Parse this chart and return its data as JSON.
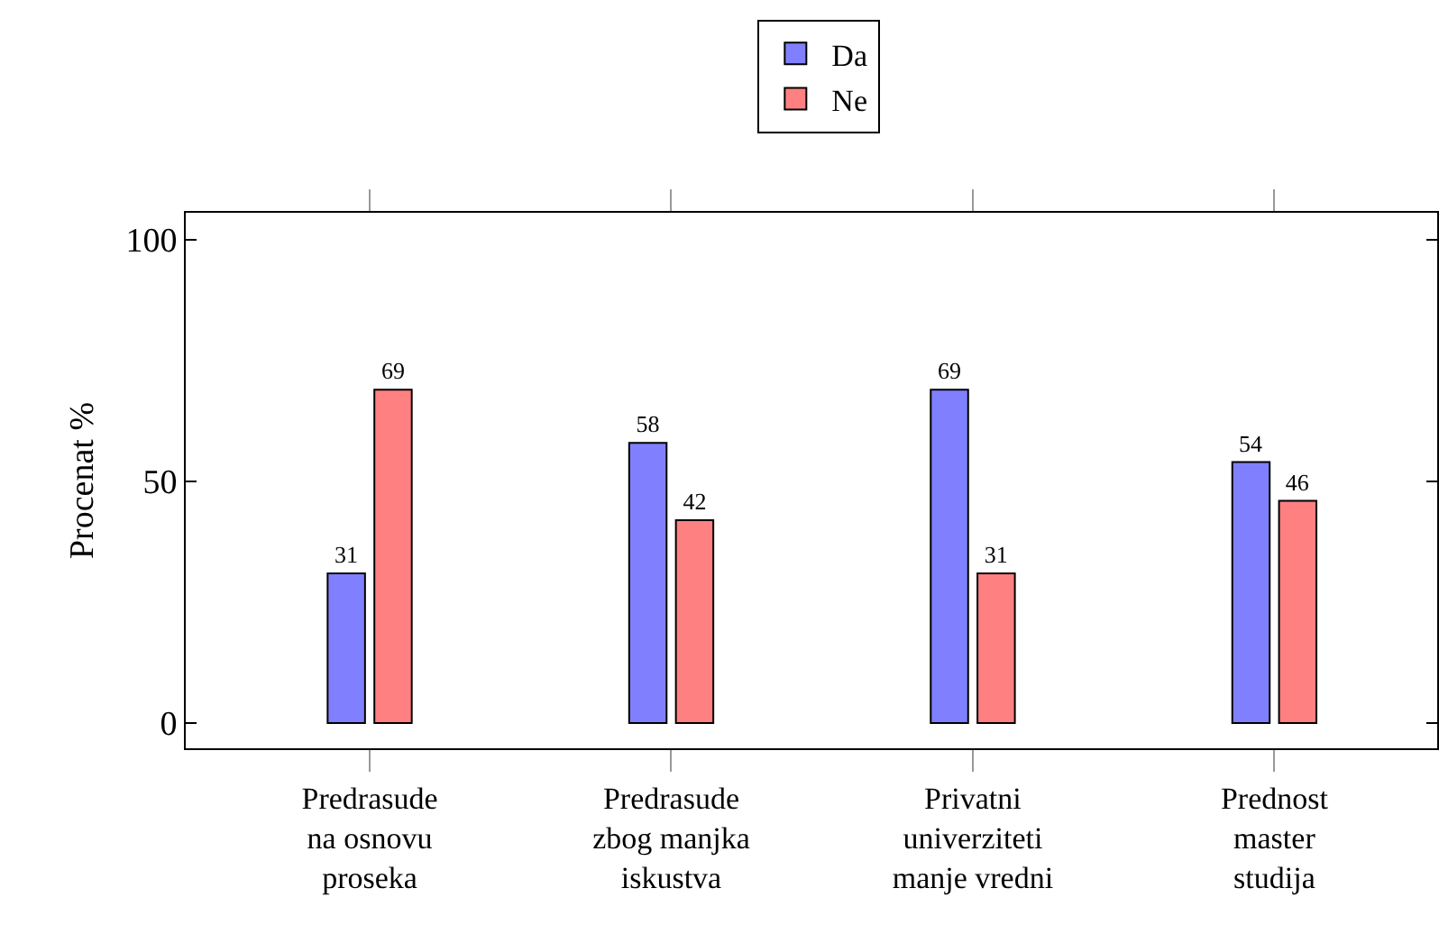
{
  "chart_data": {
    "type": "bar",
    "ylabel": "Procenat %",
    "categories": [
      "Predrasude\nna osnovu\nproseka",
      "Predrasude\nzbog manjka\niskustva",
      "Privatni\nuniverziteti\nmanje vredni",
      "Prednost\nmaster\nstudija"
    ],
    "series": [
      {
        "name": "Da",
        "color": "#8080ff",
        "values": [
          31,
          58,
          69,
          54
        ]
      },
      {
        "name": "Ne",
        "color": "#ff8080",
        "values": [
          69,
          42,
          31,
          46
        ]
      }
    ],
    "ylim": [
      -5.2,
      105.6
    ],
    "yticks": [
      0,
      50,
      100
    ],
    "data_labels": true,
    "legend": "top",
    "grid": false
  }
}
